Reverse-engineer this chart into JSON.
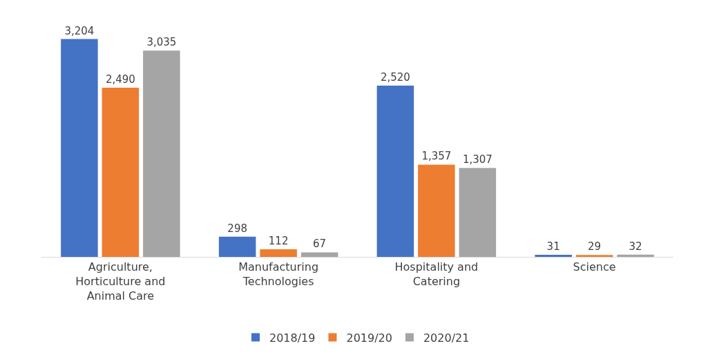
{
  "chart_data": {
    "type": "bar",
    "categories": [
      "Agriculture, Horticulture and Animal Care",
      "Manufacturing Technologies",
      "Hospitality and Catering",
      "Science"
    ],
    "series": [
      {
        "name": "2018/19",
        "color": "#4472c4",
        "values": [
          3204,
          298,
          2520,
          31
        ],
        "value_labels": [
          "3,204",
          "298",
          "2,520",
          "31"
        ]
      },
      {
        "name": "2019/20",
        "color": "#ed7d31",
        "values": [
          2490,
          112,
          1357,
          29
        ],
        "value_labels": [
          "2,490",
          "112",
          "1,357",
          "29"
        ]
      },
      {
        "name": "2020/21",
        "color": "#a5a5a5",
        "values": [
          3035,
          67,
          1307,
          32
        ],
        "value_labels": [
          "3,035",
          "67",
          "1,307",
          "32"
        ]
      }
    ],
    "legend": "bottom",
    "tick_labels": "x"
  }
}
